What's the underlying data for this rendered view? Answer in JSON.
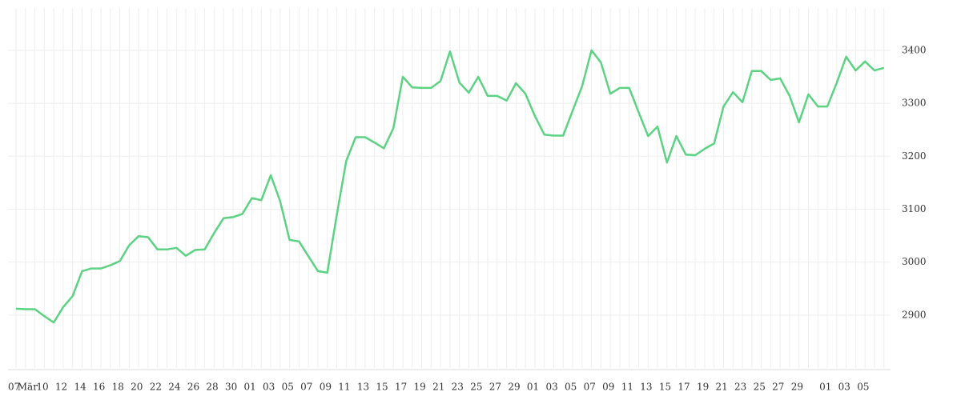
{
  "chart_data": {
    "type": "line",
    "categories": [
      "07",
      "Mär",
      null,
      "10",
      null,
      "12",
      null,
      "14",
      null,
      "16",
      null,
      "18",
      null,
      "20",
      null,
      "22",
      null,
      "24",
      null,
      "26",
      null,
      "28",
      null,
      "30",
      null,
      "01",
      null,
      "03",
      null,
      "05",
      null,
      "07",
      null,
      "09",
      null,
      "11",
      null,
      "13",
      null,
      "15",
      null,
      "17",
      null,
      "19",
      null,
      "21",
      null,
      "23",
      null,
      "25",
      null,
      "27",
      null,
      "29",
      null,
      "01",
      null,
      "03",
      null,
      "05",
      null,
      "07",
      null,
      "09",
      null,
      "11",
      null,
      "13",
      null,
      "15",
      null,
      "17",
      null,
      "19",
      null,
      "21",
      null,
      "23",
      null,
      "25",
      null,
      "27",
      null,
      "29",
      null,
      null,
      "01",
      null,
      "03",
      null,
      "05",
      null,
      null
    ],
    "series": [
      {
        "color": "#5cd283",
        "values": [
          2912,
          2911,
          2911,
          2898,
          2886,
          2915,
          2936,
          2983,
          2988,
          2988,
          2994,
          3002,
          3032,
          3049,
          3047,
          3024,
          3024,
          3027,
          3012,
          3023,
          3024,
          3055,
          3083,
          3085,
          3091,
          3121,
          3117,
          3164,
          3115,
          3042,
          3039,
          3011,
          2983,
          2980,
          3089,
          3191,
          3236,
          3236,
          3226,
          3215,
          3253,
          3350,
          3330,
          3329,
          3329,
          3342,
          3398,
          3339,
          3320,
          3350,
          3314,
          3314,
          3305,
          3338,
          3318,
          3276,
          3241,
          3239,
          3239,
          3286,
          3332,
          3400,
          3377,
          3318,
          3329,
          3329,
          3283,
          3238,
          3256,
          3188,
          3238,
          3203,
          3202,
          3214,
          3224,
          3294,
          3321,
          3302,
          3361,
          3361,
          3344,
          3347,
          3314,
          3264,
          3317,
          3294,
          3294,
          3339,
          3388,
          3362,
          3379,
          3362,
          3367
        ]
      }
    ],
    "ylim": [
      2800,
      3480
    ],
    "yticks": [
      2900,
      3000,
      3100,
      3200,
      3300,
      3400
    ],
    "grid": true
  }
}
